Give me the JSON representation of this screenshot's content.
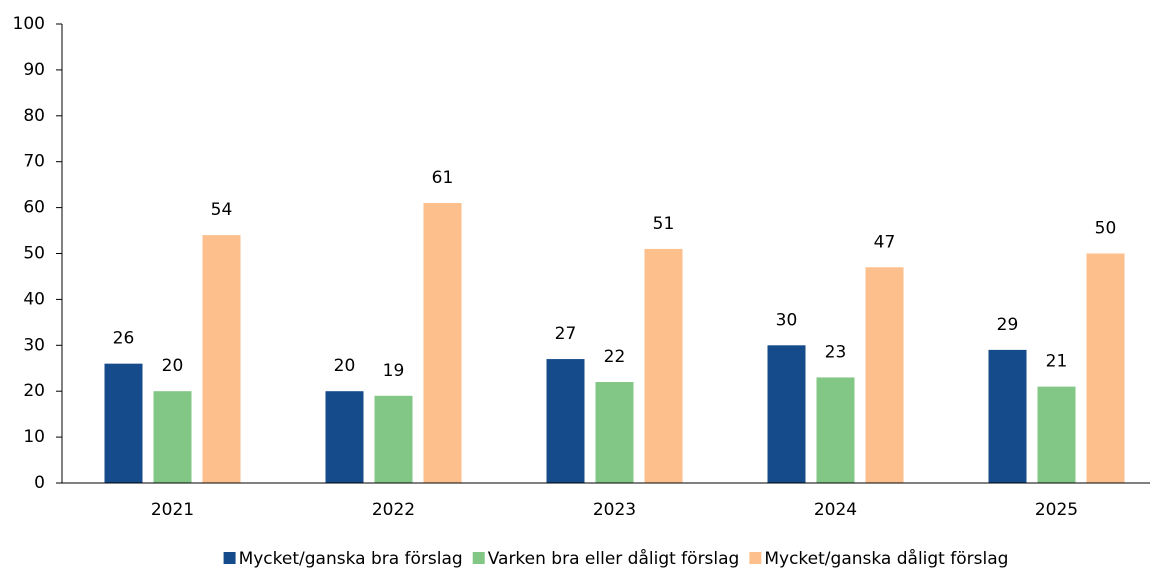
{
  "chart_data": {
    "type": "bar",
    "categories": [
      "2021",
      "2022",
      "2023",
      "2024",
      "2025"
    ],
    "series": [
      {
        "name": "Mycket/ganska bra förslag",
        "color": "#154b8a",
        "values": [
          26,
          20,
          27,
          30,
          29
        ]
      },
      {
        "name": "Varken bra eller dåligt förslag",
        "color": "#82c785",
        "values": [
          20,
          19,
          22,
          23,
          21
        ]
      },
      {
        "name": "Mycket/ganska dåligt förslag",
        "color": "#fdbf8c",
        "values": [
          54,
          61,
          51,
          47,
          50
        ]
      }
    ],
    "ylim": [
      0,
      100
    ],
    "yticks": [
      0,
      10,
      20,
      30,
      40,
      50,
      60,
      70,
      80,
      90,
      100
    ],
    "grid": false,
    "legend": "bottom"
  }
}
